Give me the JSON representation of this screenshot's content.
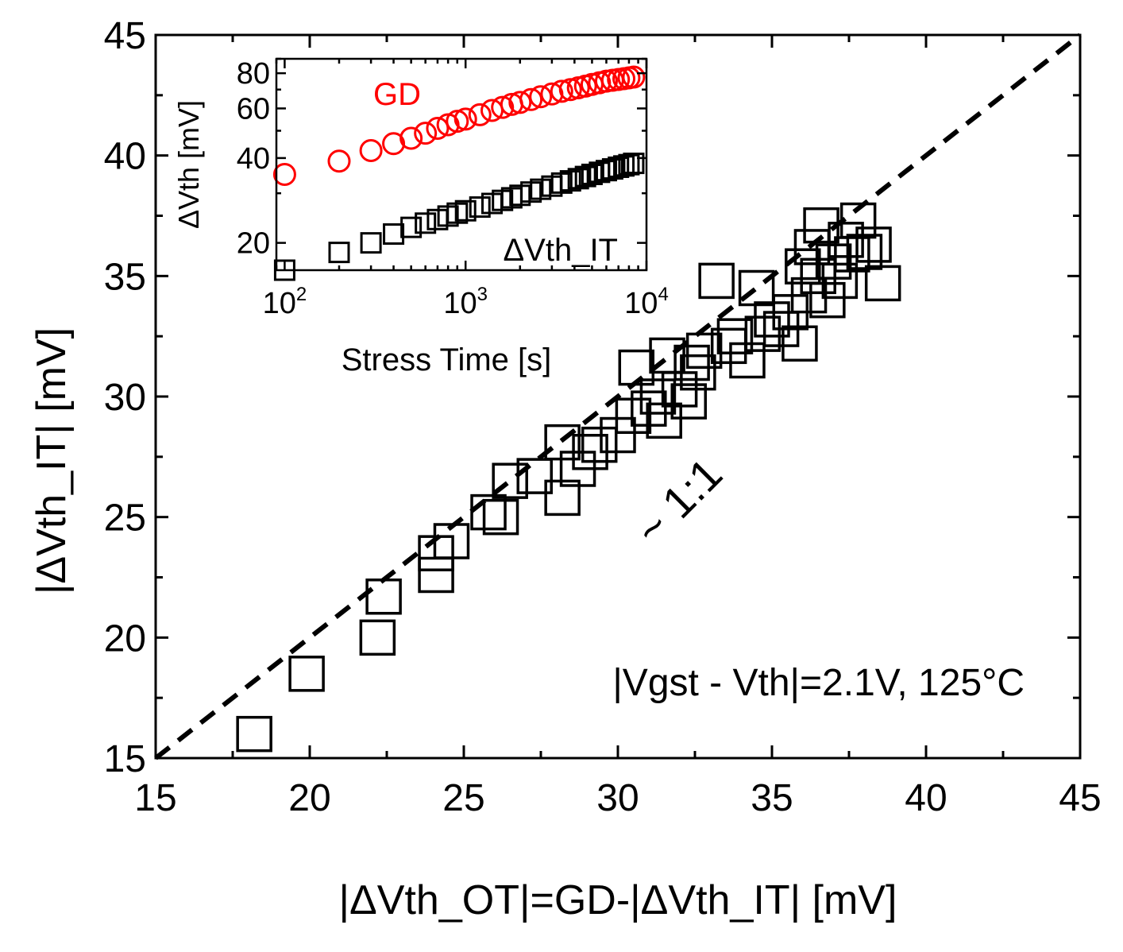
{
  "chart_data": [
    {
      "type": "scatter",
      "xlabel": "|ΔVth_OT|=GD-|ΔVth_IT| [mV]",
      "ylabel": "|ΔVth_IT| [mV]",
      "xlim": [
        15,
        45
      ],
      "ylim": [
        15,
        45
      ],
      "xticks": [
        "15",
        "20",
        "25",
        "30",
        "35",
        "40",
        "45"
      ],
      "yticks": [
        "15",
        "20",
        "25",
        "30",
        "35",
        "40",
        "45"
      ],
      "annotation": "|Vgst - Vth|=2.1V, 125°C",
      "reference_line": {
        "label": "~ 1:1",
        "style": "dashed",
        "points": [
          [
            15,
            15
          ],
          [
            45,
            45
          ]
        ]
      },
      "series": [
        {
          "marker": "open-square",
          "color": "#000000",
          "points": [
            [
              18.2,
              16.0
            ],
            [
              19.9,
              18.5
            ],
            [
              22.2,
              20.0
            ],
            [
              22.4,
              21.7
            ],
            [
              24.1,
              22.6
            ],
            [
              24.1,
              23.5
            ],
            [
              24.6,
              24.0
            ],
            [
              25.8,
              25.2
            ],
            [
              26.2,
              25.0
            ],
            [
              26.5,
              26.5
            ],
            [
              27.3,
              26.7
            ],
            [
              28.2,
              25.8
            ],
            [
              28.2,
              28.1
            ],
            [
              28.7,
              27.0
            ],
            [
              29.1,
              27.7
            ],
            [
              29.4,
              28.0
            ],
            [
              30.0,
              28.4
            ],
            [
              30.5,
              29.2
            ],
            [
              30.6,
              31.2
            ],
            [
              31.0,
              29.5
            ],
            [
              31.3,
              30.0
            ],
            [
              31.5,
              29.0
            ],
            [
              31.6,
              31.7
            ],
            [
              32.0,
              30.3
            ],
            [
              32.3,
              29.8
            ],
            [
              32.4,
              31.4
            ],
            [
              32.6,
              31.0
            ],
            [
              32.8,
              31.9
            ],
            [
              33.2,
              34.8
            ],
            [
              33.6,
              32.1
            ],
            [
              33.8,
              32.5
            ],
            [
              34.2,
              31.5
            ],
            [
              34.5,
              34.5
            ],
            [
              34.7,
              32.6
            ],
            [
              35.0,
              33.2
            ],
            [
              35.3,
              32.8
            ],
            [
              35.6,
              33.5
            ],
            [
              35.9,
              32.2
            ],
            [
              36.0,
              35.4
            ],
            [
              36.2,
              34.2
            ],
            [
              36.3,
              36.2
            ],
            [
              36.5,
              35.0
            ],
            [
              36.6,
              37.1
            ],
            [
              36.8,
              34.0
            ],
            [
              37.0,
              35.6
            ],
            [
              37.2,
              34.8
            ],
            [
              37.4,
              36.5
            ],
            [
              37.6,
              35.9
            ],
            [
              37.8,
              37.3
            ],
            [
              38.0,
              36.0
            ],
            [
              38.3,
              36.3
            ],
            [
              38.6,
              34.7
            ]
          ]
        }
      ]
    },
    {
      "type": "scatter",
      "scale": "log-log",
      "xlabel": "Stress Time [s]",
      "ylabel": "ΔVth [mV]",
      "xlim": [
        90,
        10000
      ],
      "ylim": [
        16,
        90
      ],
      "xticks": [
        {
          "value": 100,
          "base": "10",
          "exp": "2"
        },
        {
          "value": 1000,
          "base": "10",
          "exp": "3"
        },
        {
          "value": 10000,
          "base": "10",
          "exp": "4"
        }
      ],
      "yticks": [
        {
          "value": 20,
          "label": "20"
        },
        {
          "value": 40,
          "label": "40"
        },
        {
          "value": 60,
          "label": "60"
        },
        {
          "value": 80,
          "label": "80"
        }
      ],
      "series": [
        {
          "name": "GD",
          "marker": "open-circle",
          "color": "#ff0000",
          "x": [
            100,
            200,
            300,
            400,
            500,
            600,
            700,
            800,
            900,
            1000,
            1200,
            1400,
            1600,
            1800,
            2000,
            2300,
            2600,
            3000,
            3400,
            3800,
            4200,
            4600,
            5000,
            5500,
            6000,
            6500,
            7000,
            7500,
            8000,
            8500
          ],
          "y": [
            35,
            39,
            42.5,
            45,
            47,
            49,
            51,
            52.5,
            54,
            55,
            57,
            59,
            60.5,
            62,
            63,
            64.5,
            66,
            67.5,
            69,
            70,
            71,
            72,
            73,
            74,
            75,
            75.5,
            76,
            76.5,
            77,
            77.5
          ]
        },
        {
          "name": "ΔVth_IT",
          "marker": "open-square",
          "color": "#000000",
          "x": [
            100,
            200,
            300,
            400,
            500,
            600,
            700,
            800,
            900,
            1000,
            1200,
            1400,
            1600,
            1800,
            2000,
            2300,
            2600,
            3000,
            3400,
            3800,
            4200,
            4600,
            5000,
            5500,
            6000,
            6500,
            7000,
            7500,
            8000,
            8500
          ],
          "y": [
            16,
            18.5,
            20,
            21.5,
            22.7,
            23.5,
            24.2,
            24.9,
            25.5,
            26,
            26.8,
            27.6,
            28.3,
            28.9,
            29.5,
            30.3,
            31,
            31.8,
            32.6,
            33.2,
            33.8,
            34.4,
            35,
            35.6,
            36.1,
            36.6,
            37.1,
            37.5,
            37.9,
            38.3
          ]
        }
      ]
    }
  ]
}
